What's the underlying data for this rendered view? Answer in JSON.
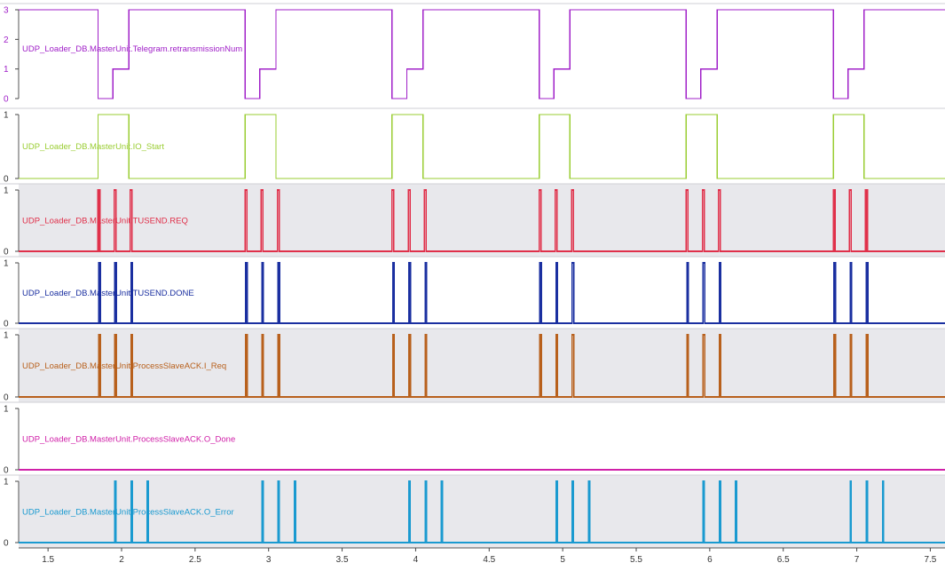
{
  "chart_data": {
    "type": "line",
    "chart_kind": "digital-logic-trace",
    "x_ticks": [
      "1.5",
      "2",
      "2.5",
      "3",
      "3.5",
      "4",
      "4.5",
      "5",
      "5.5",
      "6",
      "6.5",
      "7",
      "7.5"
    ],
    "x_tick_values": [
      1.5,
      2,
      2.5,
      3,
      3.5,
      4,
      4.5,
      5,
      5.5,
      6,
      6.5,
      7,
      7.5
    ],
    "xlim": [
      1.3,
      7.6
    ],
    "series": [
      {
        "name": "UDP_Loader_DB.MasterUnit.Telegram.retransmissionNum",
        "color": "#a020c8",
        "background": "white",
        "ylim": [
          0,
          3
        ],
        "y_ticks": [
          "0",
          "1",
          "2",
          "3"
        ],
        "y_tick_values": [
          0,
          1,
          2,
          3
        ],
        "steps": [
          [
            1.3,
            3
          ],
          [
            1.84,
            0
          ],
          [
            1.94,
            1
          ],
          [
            2.05,
            3
          ],
          [
            2.84,
            0
          ],
          [
            2.94,
            1
          ],
          [
            3.05,
            3
          ],
          [
            3.84,
            0
          ],
          [
            3.94,
            1
          ],
          [
            4.05,
            3
          ],
          [
            4.84,
            0
          ],
          [
            4.94,
            1
          ],
          [
            5.05,
            3
          ],
          [
            5.84,
            0
          ],
          [
            5.94,
            1
          ],
          [
            6.05,
            3
          ],
          [
            6.84,
            0
          ],
          [
            6.94,
            1
          ],
          [
            7.05,
            3
          ]
        ]
      },
      {
        "name": "UDP_Loader_DB.MasterUnit.IO_Start",
        "color": "#9acd32",
        "background": "white",
        "ylim": [
          0,
          1
        ],
        "y_ticks": [
          "0",
          "1"
        ],
        "y_tick_values": [
          0,
          1
        ],
        "steps": [
          [
            1.3,
            0
          ],
          [
            1.84,
            1
          ],
          [
            2.05,
            0
          ],
          [
            2.84,
            1
          ],
          [
            3.05,
            0
          ],
          [
            3.84,
            1
          ],
          [
            4.05,
            0
          ],
          [
            4.84,
            1
          ],
          [
            5.05,
            0
          ],
          [
            5.84,
            1
          ],
          [
            6.05,
            0
          ],
          [
            6.84,
            1
          ],
          [
            7.05,
            0
          ]
        ]
      },
      {
        "name": "UDP_Loader_DB.MasterUnit.TUSEND.REQ",
        "color": "#e0304a",
        "background": "gray",
        "ylim": [
          0,
          1
        ],
        "y_ticks": [
          "0",
          "1"
        ],
        "y_tick_values": [
          0,
          1
        ],
        "pulses": [
          1.84,
          1.95,
          2.06,
          2.84,
          2.95,
          3.06,
          3.84,
          3.95,
          4.06,
          4.84,
          4.95,
          5.06,
          5.84,
          5.95,
          6.06,
          6.84,
          6.95,
          7.06
        ],
        "pulse_width": 0.012
      },
      {
        "name": "UDP_Loader_DB.MasterUnit.TUSEND.DONE",
        "color": "#1a2fa0",
        "background": "white",
        "ylim": [
          0,
          1
        ],
        "y_ticks": [
          "0",
          "1"
        ],
        "y_tick_values": [
          0,
          1
        ],
        "pulses": [
          1.845,
          1.955,
          2.065,
          2.845,
          2.955,
          3.065,
          3.845,
          3.955,
          4.065,
          4.845,
          4.955,
          5.065,
          5.845,
          5.955,
          6.065,
          6.845,
          6.955,
          7.065
        ],
        "pulse_width": 0.01
      },
      {
        "name": "UDP_Loader_DB.MasterUnit.ProcessSlaveACK.I_Req",
        "color": "#b8601c",
        "background": "gray",
        "ylim": [
          0,
          1
        ],
        "y_ticks": [
          "0",
          "1"
        ],
        "y_tick_values": [
          0,
          1
        ],
        "pulses": [
          1.845,
          1.955,
          2.065,
          2.845,
          2.955,
          3.065,
          3.845,
          3.955,
          4.065,
          4.845,
          4.955,
          5.065,
          5.845,
          5.955,
          6.065,
          6.845,
          6.955,
          7.065
        ],
        "pulse_width": 0.01
      },
      {
        "name": "UDP_Loader_DB.MasterUnit.ProcessSlaveACK.O_Done",
        "color": "#d020a8",
        "background": "white",
        "ylim": [
          0,
          1
        ],
        "y_ticks": [
          "0",
          "1"
        ],
        "y_tick_values": [
          0,
          1
        ],
        "pulses": [],
        "pulse_width": 0.01
      },
      {
        "name": "UDP_Loader_DB.MasterUnit.ProcessSlaveACK.O_Error",
        "color": "#1a9ad0",
        "background": "gray",
        "ylim": [
          0,
          1
        ],
        "y_ticks": [
          "0",
          "1"
        ],
        "y_tick_values": [
          0,
          1
        ],
        "pulses": [
          1.955,
          2.065,
          2.175,
          2.955,
          3.065,
          3.175,
          3.955,
          4.065,
          4.175,
          4.955,
          5.065,
          5.175,
          5.955,
          6.065,
          6.175,
          6.955,
          7.065,
          7.175
        ],
        "pulse_width": 0.008
      }
    ]
  }
}
